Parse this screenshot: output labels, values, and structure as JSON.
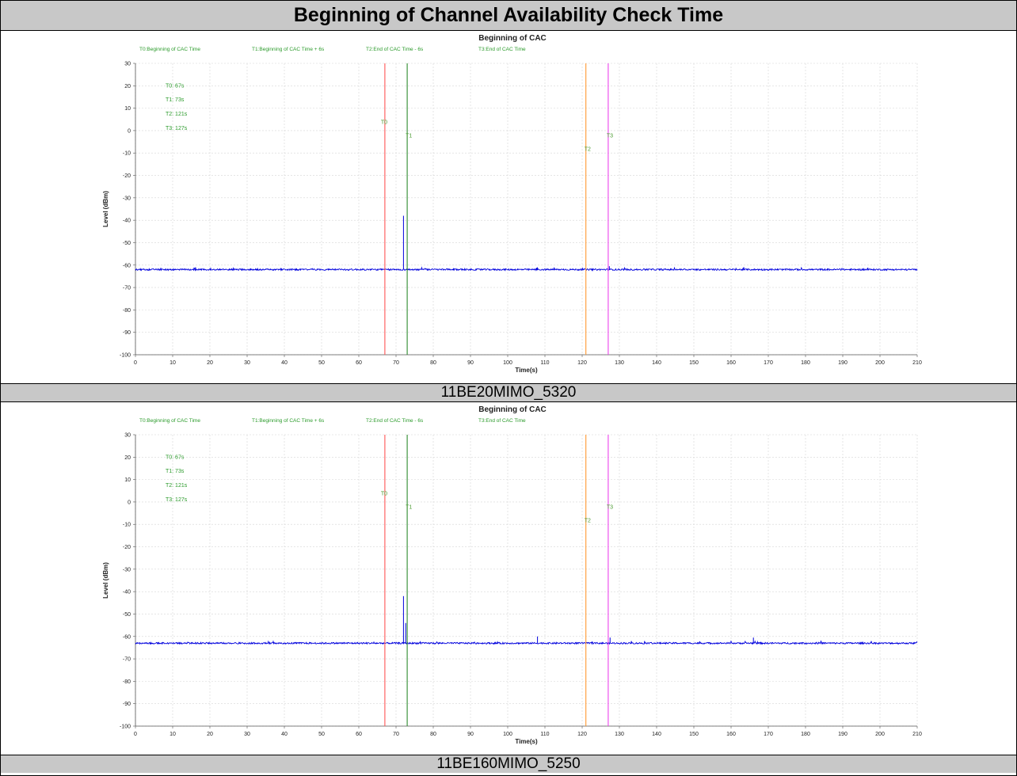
{
  "report": {
    "title": "Beginning of Channel Availability Check Time"
  },
  "chart_data": [
    {
      "type": "line",
      "caption": "11BE20MIMO_5320",
      "title": "Beginning of CAC",
      "xlabel": "Time(s)",
      "ylabel": "Level (dBm)",
      "xlim": [
        0,
        210
      ],
      "ylim": [
        -100,
        30
      ],
      "xticks": [
        0,
        10,
        20,
        30,
        40,
        50,
        60,
        70,
        80,
        90,
        100,
        110,
        120,
        130,
        140,
        150,
        160,
        170,
        180,
        190,
        200,
        210
      ],
      "yticks": [
        30,
        20,
        10,
        0,
        -10,
        -20,
        -30,
        -40,
        -50,
        -60,
        -70,
        -80,
        -90,
        -100
      ],
      "grid": true,
      "legend": [
        "T0:Beginning of CAC Time",
        "T1:Beginning of CAC Time + 6s",
        "T2:End of CAC Time - 6s",
        "T3:End of CAC Time"
      ],
      "values_text": [
        "T0: 67s",
        "T1: 73s",
        "T2: 121s",
        "T3: 127s"
      ],
      "markers": [
        {
          "label": "T0",
          "x": 67,
          "color": "#ff5555",
          "label_y": 3
        },
        {
          "label": "T1",
          "x": 73,
          "color": "#2e8b2e",
          "label_y": -3
        },
        {
          "label": "T2",
          "x": 121,
          "color": "#ff9933",
          "label_y": -9
        },
        {
          "label": "T3",
          "x": 127,
          "color": "#ee44ee",
          "label_y": -3
        }
      ],
      "series": [
        {
          "color": "#0000dd",
          "baseline": -62,
          "noise": 0.35,
          "spikes": [
            {
              "x": 72,
              "y": -38
            },
            {
              "x": 127.3,
              "y": -60.5
            },
            {
              "x": 108,
              "y": -61
            }
          ]
        }
      ]
    },
    {
      "type": "line",
      "caption": "11BE160MIMO_5250",
      "title": "Beginning of CAC",
      "xlabel": "Time(s)",
      "ylabel": "Level (dBm)",
      "xlim": [
        0,
        210
      ],
      "ylim": [
        -100,
        30
      ],
      "xticks": [
        0,
        10,
        20,
        30,
        40,
        50,
        60,
        70,
        80,
        90,
        100,
        110,
        120,
        130,
        140,
        150,
        160,
        170,
        180,
        190,
        200,
        210
      ],
      "yticks": [
        30,
        20,
        10,
        0,
        -10,
        -20,
        -30,
        -40,
        -50,
        -60,
        -70,
        -80,
        -90,
        -100
      ],
      "grid": true,
      "legend": [
        "T0:Beginning of CAC Time",
        "T1:Beginning of CAC Time + 6s",
        "T2:End of CAC Time - 6s",
        "T3:End of CAC Time"
      ],
      "values_text": [
        "T0: 67s",
        "T1: 73s",
        "T2: 121s",
        "T3: 127s"
      ],
      "markers": [
        {
          "label": "T0",
          "x": 67,
          "color": "#ff5555",
          "label_y": 3
        },
        {
          "label": "T1",
          "x": 73,
          "color": "#2e8b2e",
          "label_y": -3
        },
        {
          "label": "T2",
          "x": 121,
          "color": "#ff9933",
          "label_y": -9
        },
        {
          "label": "T3",
          "x": 127,
          "color": "#ee44ee",
          "label_y": -3
        }
      ],
      "series": [
        {
          "color": "#0000dd",
          "baseline": -63,
          "noise": 0.35,
          "spikes": [
            {
              "x": 72,
              "y": -42
            },
            {
              "x": 72.6,
              "y": -54
            },
            {
              "x": 108,
              "y": -60
            },
            {
              "x": 127.5,
              "y": -60.5
            },
            {
              "x": 166,
              "y": -60.5
            }
          ]
        }
      ]
    }
  ]
}
